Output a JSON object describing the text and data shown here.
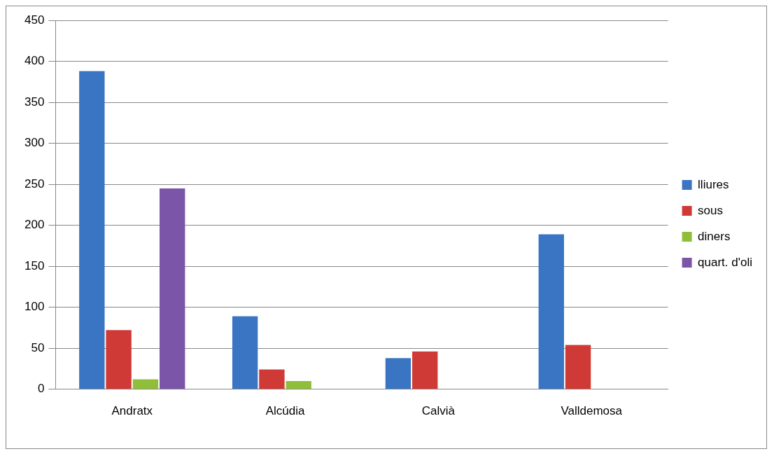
{
  "chart_data": {
    "type": "bar",
    "categories": [
      "Andratx",
      "Alcúdia",
      "Calvià",
      "Valldemosa"
    ],
    "series": [
      {
        "name": "lliures",
        "color": "#3a75c4",
        "values": [
          388,
          89,
          38,
          189
        ]
      },
      {
        "name": "sous",
        "color": "#d03a36",
        "values": [
          72,
          24,
          46,
          54
        ]
      },
      {
        "name": "diners",
        "color": "#8fbf3a",
        "values": [
          12,
          10,
          null,
          null
        ]
      },
      {
        "name": "quart. d'oli",
        "color": "#7a55a8",
        "values": [
          245,
          null,
          null,
          null
        ]
      }
    ],
    "ylim": [
      0,
      450
    ],
    "yticks": [
      0,
      50,
      100,
      150,
      200,
      250,
      300,
      350,
      400,
      450
    ],
    "grid": "y",
    "legend": "right"
  }
}
